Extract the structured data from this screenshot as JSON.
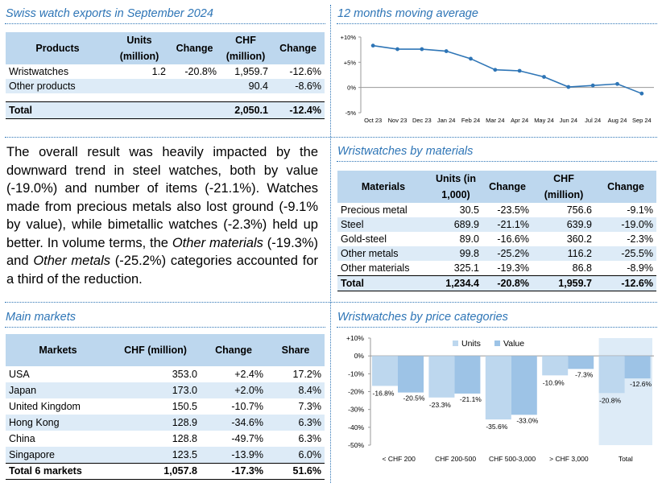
{
  "exports": {
    "title": "Swiss watch exports in September 2024",
    "headers": [
      "Products",
      "Units (million)",
      "Change",
      "CHF (million)",
      "Change"
    ],
    "rows": [
      {
        "name": "Wristwatches",
        "units": "1.2",
        "change1": "-20.8%",
        "chf": "1,959.7",
        "change2": "-12.6%"
      },
      {
        "name": "Other products",
        "units": "",
        "change1": "",
        "chf": "90.4",
        "change2": "-8.6%"
      }
    ],
    "total": {
      "name": "Total",
      "units": "",
      "change1": "",
      "chf": "2,050.1",
      "change2": "-12.4%"
    }
  },
  "paragraph": {
    "p1": "The overall result was heavily impacted by the downward trend in steel watches, both by value (-19.0%) and number of items (-21.1%). Watches made from precious metals also lost ground (-9.1% by value), while bimetallic watches (-2.3%) held up better. In volume terms, the ",
    "em1": "Other materials",
    "p2": " (-19.3%) and ",
    "em2": "Other metals",
    "p3": " (-25.2%) categories accounted for a third of the reduction."
  },
  "markets": {
    "title": "Main markets",
    "headers": [
      "Markets",
      "CHF (million)",
      "Change",
      "Share"
    ],
    "rows": [
      {
        "name": "USA",
        "chf": "353.0",
        "change": "+2.4%",
        "share": "17.2%"
      },
      {
        "name": "Japan",
        "chf": "173.0",
        "change": "+2.0%",
        "share": "8.4%"
      },
      {
        "name": "United Kingdom",
        "chf": "150.5",
        "change": "-10.7%",
        "share": "7.3%"
      },
      {
        "name": "Hong Kong",
        "chf": "128.9",
        "change": "-34.6%",
        "share": "6.3%"
      },
      {
        "name": "China",
        "chf": "128.8",
        "change": "-49.7%",
        "share": "6.3%"
      },
      {
        "name": "Singapore",
        "chf": "123.5",
        "change": "-13.9%",
        "share": "6.0%"
      }
    ],
    "total": {
      "name": "Total 6 markets",
      "chf": "1,057.8",
      "change": "-17.3%",
      "share": "51.6%"
    }
  },
  "materials": {
    "title": "Wristwatches by materials",
    "headers": [
      "Materials",
      "Units (in 1,000)",
      "Change",
      "CHF (million)",
      "Change"
    ],
    "rows": [
      {
        "name": "Precious metal",
        "units": "30.5",
        "change1": "-23.5%",
        "chf": "756.6",
        "change2": "-9.1%"
      },
      {
        "name": "Steel",
        "units": "689.9",
        "change1": "-21.1%",
        "chf": "639.9",
        "change2": "-19.0%"
      },
      {
        "name": "Gold-steel",
        "units": "89.0",
        "change1": "-16.6%",
        "chf": "360.2",
        "change2": "-2.3%"
      },
      {
        "name": "Other metals",
        "units": "99.8",
        "change1": "-25.2%",
        "chf": "116.2",
        "change2": "-25.5%"
      },
      {
        "name": "Other materials",
        "units": "325.1",
        "change1": "-19.3%",
        "chf": "86.8",
        "change2": "-8.9%"
      }
    ],
    "total": {
      "name": "Total",
      "units": "1,234.4",
      "change1": "-20.8%",
      "chf": "1,959.7",
      "change2": "-12.6%"
    }
  },
  "chart_data": [
    {
      "type": "line",
      "title": "12 months moving average",
      "categories": [
        "Oct 23",
        "Nov 23",
        "Dec 23",
        "Jan 24",
        "Feb 24",
        "Mar 24",
        "Apr 24",
        "May 24",
        "Jun 24",
        "Jul 24",
        "Aug 24",
        "Sep 24"
      ],
      "series": [
        {
          "values": [
            8.3,
            7.6,
            7.6,
            7.2,
            5.7,
            3.5,
            3.3,
            2.1,
            0.1,
            0.4,
            0.7,
            -1.2
          ]
        }
      ],
      "yticks": [
        "+10%",
        "+5%",
        "0%",
        "-5%"
      ],
      "ylim": [
        -5,
        10
      ],
      "grid": false,
      "color": "#2e75b6"
    },
    {
      "type": "bar",
      "title": "Wristwatches by price categories",
      "categories": [
        "< CHF 200",
        "CHF 200-500",
        "CHF 500-3,000",
        "> CHF 3,000",
        "Total"
      ],
      "series": [
        {
          "name": "Units",
          "values": [
            -16.8,
            -23.3,
            -35.6,
            -10.9,
            -20.8
          ],
          "labels": [
            "-16.8%",
            "-23.3%",
            "-35.6%",
            "-10.9%",
            "-20.8%"
          ],
          "color": "#bdd7ee"
        },
        {
          "name": "Value",
          "values": [
            -20.5,
            -21.1,
            -33.0,
            -7.3,
            -12.6
          ],
          "labels": [
            "-20.5%",
            "-21.1%",
            "-33.0%",
            "-7.3%",
            "-12.6%"
          ],
          "color": "#9dc3e6"
        }
      ],
      "yticks": [
        "+10%",
        "0%",
        "-10%",
        "-20%",
        "-30%",
        "-40%",
        "-50%"
      ],
      "ylim": [
        -50,
        10
      ],
      "legend": "top",
      "highlight_category": "Total",
      "highlight_color": "#ddebf7"
    }
  ]
}
